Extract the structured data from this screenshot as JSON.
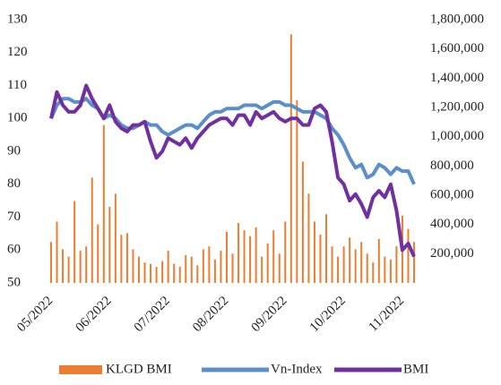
{
  "chart_data": {
    "type": "combo",
    "categories": [
      "05/2022",
      null,
      null,
      null,
      null,
      null,
      null,
      null,
      null,
      null,
      "06/2022",
      null,
      null,
      null,
      null,
      null,
      null,
      null,
      null,
      null,
      "07/2022",
      null,
      null,
      null,
      null,
      null,
      null,
      null,
      null,
      null,
      "08/2022",
      null,
      null,
      null,
      null,
      null,
      null,
      null,
      null,
      null,
      "09/2022",
      null,
      null,
      null,
      null,
      null,
      null,
      null,
      null,
      null,
      "10/2022",
      null,
      null,
      null,
      null,
      null,
      null,
      null,
      null,
      null,
      "11/2022",
      null,
      null
    ],
    "series": [
      {
        "name": "KLGD BMI",
        "type": "bar",
        "axis": "y2",
        "color": "#ed7d31",
        "values": [
          280000,
          420000,
          230000,
          180000,
          560000,
          220000,
          250000,
          720000,
          400000,
          1080000,
          520000,
          610000,
          330000,
          340000,
          230000,
          180000,
          140000,
          130000,
          110000,
          150000,
          220000,
          130000,
          110000,
          190000,
          180000,
          120000,
          230000,
          250000,
          160000,
          220000,
          350000,
          200000,
          410000,
          360000,
          320000,
          380000,
          180000,
          270000,
          360000,
          200000,
          420000,
          1700000,
          1250000,
          830000,
          610000,
          420000,
          330000,
          470000,
          250000,
          180000,
          250000,
          310000,
          230000,
          280000,
          200000,
          140000,
          300000,
          180000,
          160000,
          250000,
          460000,
          370000,
          280000
        ]
      },
      {
        "name": "Vn-Index",
        "type": "line",
        "color": "#5b8fc9",
        "values": [
          100,
          104,
          106,
          106,
          105,
          105,
          106,
          104,
          103,
          100,
          101,
          100,
          98,
          97,
          97,
          98,
          99,
          98,
          98,
          96,
          95,
          96,
          97,
          98,
          98,
          97,
          99,
          101,
          102,
          102,
          103,
          103,
          103,
          104,
          104,
          104,
          103,
          104,
          105,
          105,
          104,
          104,
          103,
          102,
          102,
          102,
          101,
          100,
          97,
          95,
          92,
          88,
          85,
          86,
          82,
          83,
          86,
          85,
          83,
          85,
          84,
          84,
          80
        ]
      },
      {
        "name": "BMI",
        "type": "line",
        "color": "#7030a0",
        "values": [
          100,
          108,
          104,
          102,
          102,
          104,
          110,
          106,
          103,
          100,
          104,
          99,
          97,
          96,
          98,
          98,
          99,
          93,
          88,
          90,
          94,
          93,
          92,
          94,
          91,
          94,
          96,
          98,
          99,
          100,
          100,
          98,
          101,
          101,
          98,
          102,
          100,
          101,
          102,
          100,
          99,
          100,
          100,
          98,
          98,
          103,
          104,
          102,
          93,
          82,
          80,
          75,
          77,
          74,
          70,
          76,
          78,
          76,
          80,
          72,
          60,
          62,
          58
        ]
      }
    ],
    "ylim": [
      50,
      130
    ],
    "yticks": [
      50,
      60,
      70,
      80,
      90,
      100,
      110,
      120,
      130
    ],
    "y2lim": [
      0,
      1800000
    ],
    "y2ticks": [
      {
        "value": 200000,
        "label": "200,000"
      },
      {
        "value": 400000,
        "label": "400,000"
      },
      {
        "value": 600000,
        "label": "600,000"
      },
      {
        "value": 800000,
        "label": "800,000"
      },
      {
        "value": 1000000,
        "label": "1,000,000"
      },
      {
        "value": 1200000,
        "label": "1,200,000"
      },
      {
        "value": 1400000,
        "label": "1,400,000"
      },
      {
        "value": 1600000,
        "label": "1,600,000"
      },
      {
        "value": 1800000,
        "label": "1,800,000"
      }
    ]
  }
}
